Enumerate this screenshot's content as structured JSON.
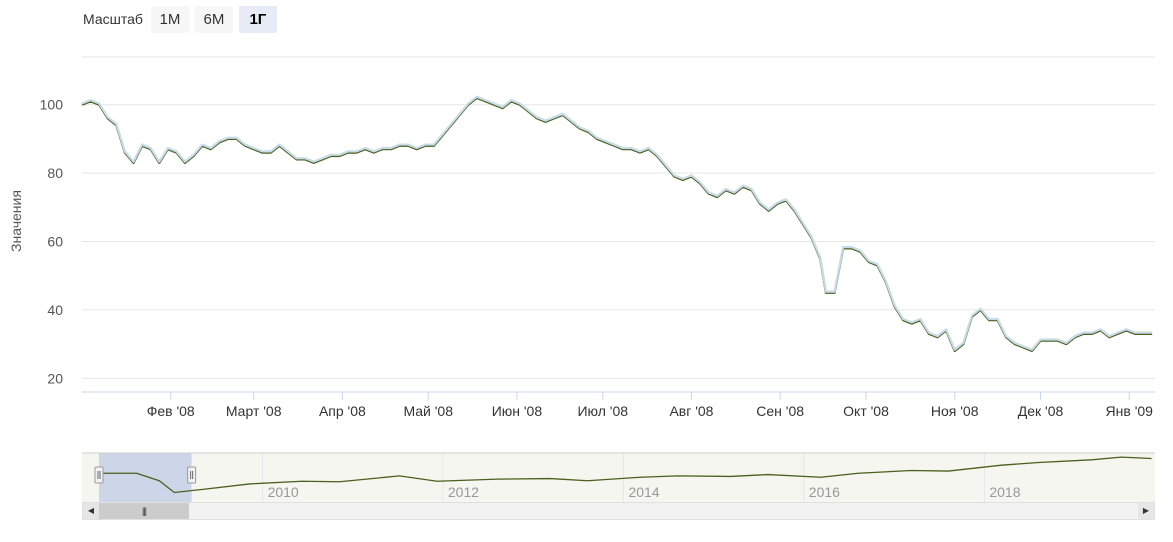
{
  "zoom": {
    "label": "Масштаб",
    "buttons": [
      {
        "label": "1М",
        "active": false
      },
      {
        "label": "6М",
        "active": false
      },
      {
        "label": "1Г",
        "active": true
      }
    ]
  },
  "colors": {
    "line_dark": "#4b5f1e",
    "line_light": "#c8dbe8",
    "grid": "#e6e6e6",
    "axis": "#ccd6eb",
    "navigator_bg": "#f4f6ef",
    "navigator_mask": "#c5d0e8",
    "navigator_line": "#4b5f1e"
  },
  "chart_data": {
    "type": "line",
    "title": "",
    "xlabel": "",
    "ylabel": "Значения",
    "x_range": [
      "2008-01-01",
      "2009-01-10"
    ],
    "ylim": [
      20,
      110
    ],
    "yticks": [
      20,
      40,
      60,
      80,
      100
    ],
    "grid": true,
    "x_tick_labels": [
      {
        "date": "2008-02-01",
        "label": "Фев '08"
      },
      {
        "date": "2008-03-01",
        "label": "Март '08"
      },
      {
        "date": "2008-04-01",
        "label": "Апр '08"
      },
      {
        "date": "2008-05-01",
        "label": "Май '08"
      },
      {
        "date": "2008-06-01",
        "label": "Июн '08"
      },
      {
        "date": "2008-07-01",
        "label": "Июл '08"
      },
      {
        "date": "2008-08-01",
        "label": "Авг '08"
      },
      {
        "date": "2008-09-01",
        "label": "Сен '08"
      },
      {
        "date": "2008-10-01",
        "label": "Окт '08"
      },
      {
        "date": "2008-11-01",
        "label": "Ноя '08"
      },
      {
        "date": "2008-12-01",
        "label": "Дек '08"
      },
      {
        "date": "2009-01-01",
        "label": "Янв '09"
      }
    ],
    "series": [
      {
        "points": [
          [
            "2008-01-01",
            100
          ],
          [
            "2008-01-04",
            101
          ],
          [
            "2008-01-07",
            100
          ],
          [
            "2008-01-10",
            96
          ],
          [
            "2008-01-13",
            94
          ],
          [
            "2008-01-16",
            86
          ],
          [
            "2008-01-19",
            83
          ],
          [
            "2008-01-22",
            88
          ],
          [
            "2008-01-25",
            87
          ],
          [
            "2008-01-28",
            83
          ],
          [
            "2008-01-31",
            87
          ],
          [
            "2008-02-03",
            86
          ],
          [
            "2008-02-06",
            83
          ],
          [
            "2008-02-09",
            85
          ],
          [
            "2008-02-12",
            88
          ],
          [
            "2008-02-15",
            87
          ],
          [
            "2008-02-18",
            89
          ],
          [
            "2008-02-21",
            90
          ],
          [
            "2008-02-24",
            90
          ],
          [
            "2008-02-27",
            88
          ],
          [
            "2008-03-01",
            87
          ],
          [
            "2008-03-04",
            86
          ],
          [
            "2008-03-07",
            86
          ],
          [
            "2008-03-10",
            88
          ],
          [
            "2008-03-13",
            86
          ],
          [
            "2008-03-16",
            84
          ],
          [
            "2008-03-19",
            84
          ],
          [
            "2008-03-22",
            83
          ],
          [
            "2008-03-25",
            84
          ],
          [
            "2008-03-28",
            85
          ],
          [
            "2008-03-31",
            85
          ],
          [
            "2008-04-03",
            86
          ],
          [
            "2008-04-06",
            86
          ],
          [
            "2008-04-09",
            87
          ],
          [
            "2008-04-12",
            86
          ],
          [
            "2008-04-15",
            87
          ],
          [
            "2008-04-18",
            87
          ],
          [
            "2008-04-21",
            88
          ],
          [
            "2008-04-24",
            88
          ],
          [
            "2008-04-27",
            87
          ],
          [
            "2008-04-30",
            88
          ],
          [
            "2008-05-03",
            88
          ],
          [
            "2008-05-06",
            91
          ],
          [
            "2008-05-09",
            94
          ],
          [
            "2008-05-12",
            97
          ],
          [
            "2008-05-15",
            100
          ],
          [
            "2008-05-18",
            102
          ],
          [
            "2008-05-21",
            101
          ],
          [
            "2008-05-24",
            100
          ],
          [
            "2008-05-27",
            99
          ],
          [
            "2008-05-30",
            101
          ],
          [
            "2008-06-02",
            100
          ],
          [
            "2008-06-05",
            98
          ],
          [
            "2008-06-08",
            96
          ],
          [
            "2008-06-11",
            95
          ],
          [
            "2008-06-14",
            96
          ],
          [
            "2008-06-17",
            97
          ],
          [
            "2008-06-20",
            95
          ],
          [
            "2008-06-23",
            93
          ],
          [
            "2008-06-26",
            92
          ],
          [
            "2008-06-29",
            90
          ],
          [
            "2008-07-02",
            89
          ],
          [
            "2008-07-05",
            88
          ],
          [
            "2008-07-08",
            87
          ],
          [
            "2008-07-11",
            87
          ],
          [
            "2008-07-14",
            86
          ],
          [
            "2008-07-17",
            87
          ],
          [
            "2008-07-20",
            85
          ],
          [
            "2008-07-23",
            82
          ],
          [
            "2008-07-26",
            79
          ],
          [
            "2008-07-29",
            78
          ],
          [
            "2008-08-01",
            79
          ],
          [
            "2008-08-04",
            77
          ],
          [
            "2008-08-07",
            74
          ],
          [
            "2008-08-10",
            73
          ],
          [
            "2008-08-13",
            75
          ],
          [
            "2008-08-16",
            74
          ],
          [
            "2008-08-19",
            76
          ],
          [
            "2008-08-22",
            75
          ],
          [
            "2008-08-25",
            71
          ],
          [
            "2008-08-28",
            69
          ],
          [
            "2008-08-31",
            71
          ],
          [
            "2008-09-03",
            72
          ],
          [
            "2008-09-06",
            69
          ],
          [
            "2008-09-09",
            65
          ],
          [
            "2008-09-12",
            61
          ],
          [
            "2008-09-15",
            55
          ],
          [
            "2008-09-17",
            45
          ],
          [
            "2008-09-20",
            45
          ],
          [
            "2008-09-23",
            58
          ],
          [
            "2008-09-26",
            58
          ],
          [
            "2008-09-29",
            57
          ],
          [
            "2008-10-02",
            54
          ],
          [
            "2008-10-05",
            53
          ],
          [
            "2008-10-08",
            48
          ],
          [
            "2008-10-11",
            41
          ],
          [
            "2008-10-14",
            37
          ],
          [
            "2008-10-17",
            36
          ],
          [
            "2008-10-20",
            37
          ],
          [
            "2008-10-23",
            33
          ],
          [
            "2008-10-26",
            32
          ],
          [
            "2008-10-29",
            34
          ],
          [
            "2008-11-01",
            28
          ],
          [
            "2008-11-04",
            30
          ],
          [
            "2008-11-07",
            38
          ],
          [
            "2008-11-10",
            40
          ],
          [
            "2008-11-13",
            37
          ],
          [
            "2008-11-16",
            37
          ],
          [
            "2008-11-19",
            32
          ],
          [
            "2008-11-22",
            30
          ],
          [
            "2008-11-25",
            29
          ],
          [
            "2008-11-28",
            28
          ],
          [
            "2008-12-01",
            31
          ],
          [
            "2008-12-04",
            31
          ],
          [
            "2008-12-07",
            31
          ],
          [
            "2008-12-10",
            30
          ],
          [
            "2008-12-13",
            32
          ],
          [
            "2008-12-16",
            33
          ],
          [
            "2008-12-19",
            33
          ],
          [
            "2008-12-22",
            34
          ],
          [
            "2008-12-25",
            32
          ],
          [
            "2008-12-28",
            33
          ],
          [
            "2008-12-31",
            34
          ],
          [
            "2009-01-03",
            33
          ],
          [
            "2009-01-06",
            33
          ],
          [
            "2009-01-09",
            33
          ]
        ]
      }
    ],
    "navigator": {
      "x_range": [
        "2008-01-01",
        "2019-09-15"
      ],
      "selected_range": [
        "2008-01-01",
        "2009-01-10"
      ],
      "year_labels": [
        {
          "date": "2010-01-01",
          "label": "2010"
        },
        {
          "date": "2012-01-01",
          "label": "2012"
        },
        {
          "date": "2014-01-01",
          "label": "2014"
        },
        {
          "date": "2016-01-01",
          "label": "2016"
        },
        {
          "date": "2018-01-01",
          "label": "2018"
        }
      ],
      "points": [
        [
          "2008-01-01",
          100
        ],
        [
          "2008-06-01",
          100
        ],
        [
          "2008-09-01",
          72
        ],
        [
          "2008-11-01",
          28
        ],
        [
          "2009-03-01",
          40
        ],
        [
          "2009-09-01",
          60
        ],
        [
          "2010-04-01",
          70
        ],
        [
          "2010-09-01",
          68
        ],
        [
          "2011-05-01",
          90
        ],
        [
          "2011-10-01",
          70
        ],
        [
          "2012-06-01",
          78
        ],
        [
          "2013-01-01",
          80
        ],
        [
          "2013-06-01",
          72
        ],
        [
          "2014-01-01",
          85
        ],
        [
          "2014-06-01",
          90
        ],
        [
          "2015-01-01",
          88
        ],
        [
          "2015-06-01",
          95
        ],
        [
          "2016-01-01",
          85
        ],
        [
          "2016-06-01",
          100
        ],
        [
          "2017-01-01",
          110
        ],
        [
          "2017-06-01",
          108
        ],
        [
          "2018-01-01",
          130
        ],
        [
          "2018-06-01",
          140
        ],
        [
          "2019-01-01",
          150
        ],
        [
          "2019-05-01",
          160
        ],
        [
          "2019-09-01",
          155
        ]
      ]
    }
  },
  "scrollbar": {
    "left_arrow": "◀",
    "right_arrow": "▶",
    "thumb_grip": "|||"
  }
}
